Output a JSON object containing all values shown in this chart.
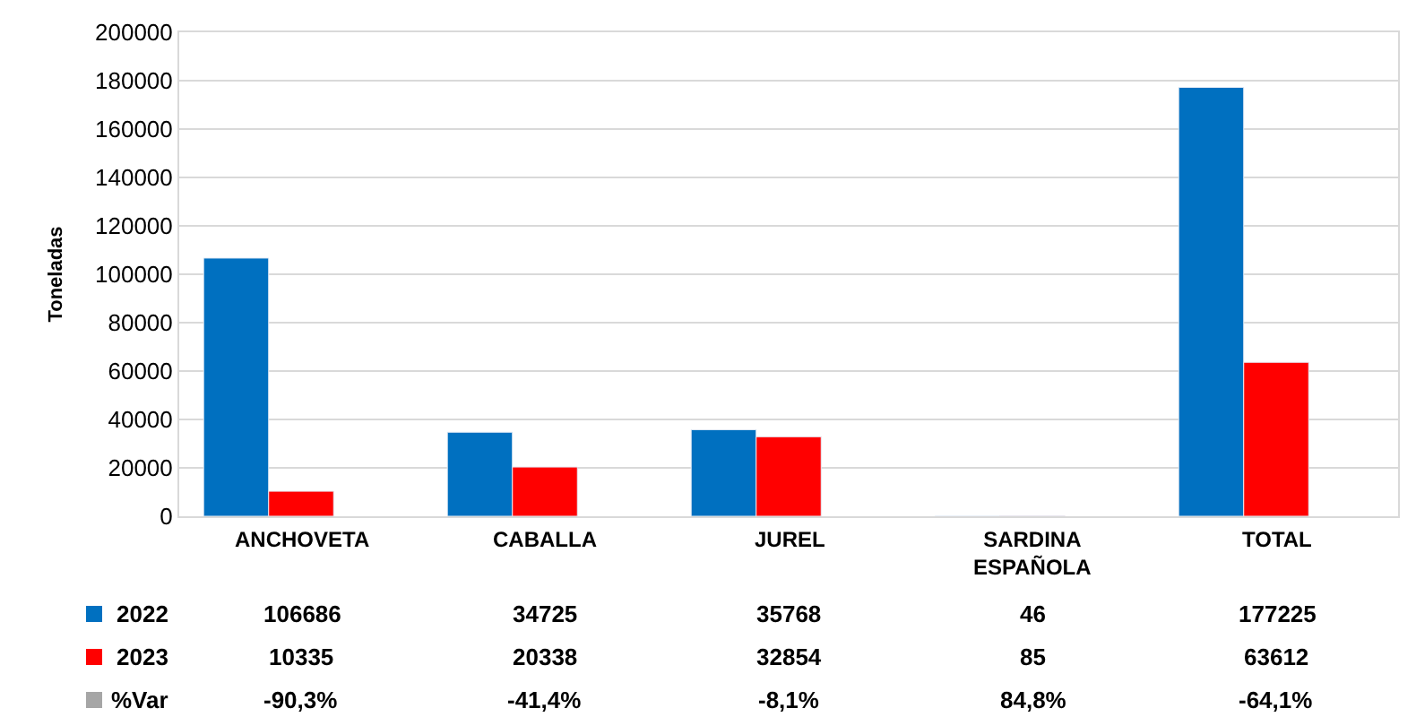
{
  "chart_data": {
    "type": "bar",
    "ylabel": "Toneladas",
    "categories": [
      "ANCHOVETA",
      "CABALLA",
      "JUREL",
      "SARDINA\nESPAÑOLA",
      "TOTAL"
    ],
    "series": [
      {
        "name": "2022",
        "color": "#0070c0",
        "values": [
          106686,
          34725,
          35768,
          46,
          177225
        ],
        "value_labels": [
          "106686",
          "34725",
          "35768",
          "46",
          "177225"
        ]
      },
      {
        "name": "2023",
        "color": "#ff0000",
        "values": [
          10335,
          20338,
          32854,
          85,
          63612
        ],
        "value_labels": [
          "10335",
          "20338",
          "32854",
          "85",
          "63612"
        ]
      },
      {
        "name": "%Var",
        "color": "#a6a6a6",
        "values": [
          null,
          null,
          null,
          null,
          null
        ],
        "value_labels": [
          "-90,3%",
          "-41,4%",
          "-8,1%",
          "84,8%",
          "-64,1%"
        ]
      }
    ],
    "ylim": [
      0,
      200000
    ],
    "yticks": [
      0,
      20000,
      40000,
      60000,
      80000,
      100000,
      120000,
      140000,
      160000,
      180000,
      200000
    ],
    "grid": "y",
    "legend": "bottom"
  }
}
